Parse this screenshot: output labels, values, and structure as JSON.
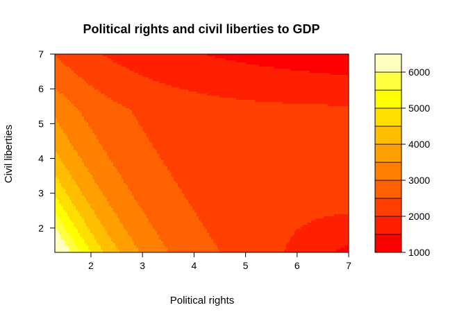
{
  "chart_data": {
    "type": "contour",
    "title": "Political rights and civil liberties to GDP",
    "xlabel": "Political rights",
    "ylabel": "Civil liberties",
    "xlim": [
      1.3,
      7
    ],
    "ylim": [
      1.3,
      7
    ],
    "x_ticks": [
      2,
      3,
      4,
      5,
      6,
      7
    ],
    "y_ticks": [
      2,
      3,
      4,
      5,
      6,
      7
    ],
    "levels": [
      1000,
      1500,
      2000,
      2500,
      3000,
      3500,
      4000,
      4500,
      5000,
      5500,
      6000,
      6500
    ],
    "colorbar_ticks": [
      1000,
      2000,
      3000,
      4000,
      5000,
      6000
    ],
    "colors": [
      "#ff0000",
      "#ff2000",
      "#ff4000",
      "#ff6000",
      "#ff8000",
      "#ffa000",
      "#ffbf00",
      "#ffdf00",
      "#ffff00",
      "#ffff40",
      "#ffffbf"
    ],
    "grid": false,
    "legend": "colorbar-right"
  }
}
